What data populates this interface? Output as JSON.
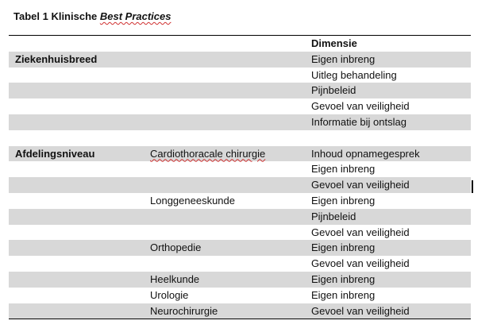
{
  "title": {
    "prefix": "Tabel 1 Klinische ",
    "italic": "Best Practices"
  },
  "table": {
    "header": {
      "col3": "Dimensie"
    },
    "rows": [
      {
        "section": "Ziekenhuisbreed",
        "department": "",
        "dimension": "Eigen inbreng",
        "shaded": true
      },
      {
        "section": "",
        "department": "",
        "dimension": "Uitleg behandeling",
        "shaded": false
      },
      {
        "section": "",
        "department": "",
        "dimension": "Pijnbeleid",
        "shaded": true
      },
      {
        "section": "",
        "department": "",
        "dimension": "Gevoel van veiligheid",
        "shaded": false
      },
      {
        "section": "",
        "department": "",
        "dimension": "Informatie bij ontslag",
        "shaded": true
      },
      {
        "section": "",
        "department": "",
        "dimension": "",
        "shaded": false
      },
      {
        "section": "Afdelingsniveau",
        "department": "Cardiothoracale chirurgie",
        "dimension": "Inhoud opnamegesprek",
        "shaded": true
      },
      {
        "section": "",
        "department": "",
        "dimension": "Eigen inbreng",
        "shaded": false
      },
      {
        "section": "",
        "department": "",
        "dimension": "Gevoel van veiligheid",
        "shaded": true
      },
      {
        "section": "",
        "department": "Longgeneeskunde",
        "dimension": "Eigen inbreng",
        "shaded": false
      },
      {
        "section": "",
        "department": "",
        "dimension": "Pijnbeleid",
        "shaded": true
      },
      {
        "section": "",
        "department": "",
        "dimension": "Gevoel van veiligheid",
        "shaded": false
      },
      {
        "section": "",
        "department": "Orthopedie",
        "dimension": "Eigen inbreng",
        "shaded": true
      },
      {
        "section": "",
        "department": "",
        "dimension": "Gevoel van veiligheid",
        "shaded": false
      },
      {
        "section": "",
        "department": "Heelkunde",
        "dimension": "Eigen inbreng",
        "shaded": true
      },
      {
        "section": "",
        "department": "Urologie",
        "dimension": "Eigen inbreng",
        "shaded": false
      },
      {
        "section": "",
        "department": "Neurochirurgie",
        "dimension": "Gevoel van veiligheid",
        "shaded": true
      }
    ]
  }
}
